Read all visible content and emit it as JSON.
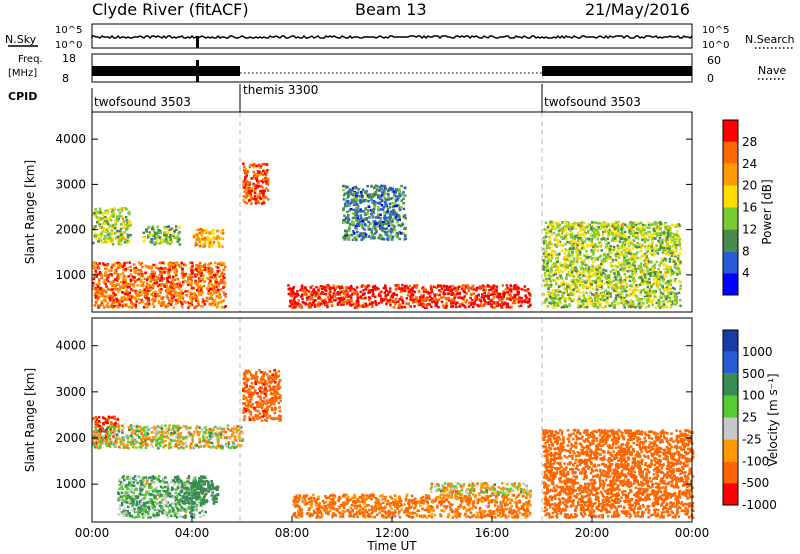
{
  "title": {
    "station": "Clyde River (fitACF)",
    "beam": "Beam 13",
    "date": "21/May/2016"
  },
  "status_panels": {
    "nsky": {
      "left_label": "N.Sky",
      "right_label": "N.Search",
      "left_ticks": [
        "10^5",
        "10^0"
      ],
      "right_ticks": [
        "10^5",
        "10^0"
      ]
    },
    "freq": {
      "left_label_1": "Freq.",
      "left_label_2": "[MHz]",
      "right_label": "Nave",
      "left_ticks": [
        "18",
        "8"
      ],
      "right_ticks": [
        "60",
        "0"
      ]
    },
    "cpid": {
      "label": "CPID",
      "modes": [
        {
          "name": "twofsound 3503",
          "start_hour": 0
        },
        {
          "name": "themis 3300",
          "start_hour": 6
        },
        {
          "name": "twofsound 3503",
          "start_hour": 18
        }
      ]
    }
  },
  "colors": {
    "power": [
      "#0000ff",
      "#2a5bd7",
      "#4a8a4a",
      "#7acc33",
      "#ffdd00",
      "#ff9900",
      "#ff6a00",
      "#ff0000"
    ],
    "velocity": [
      "#ff0000",
      "#ff6600",
      "#ff9900",
      "#c8c8c8",
      "#55cc33",
      "#3a8a55",
      "#2a5bd7",
      "#1a3aa8"
    ]
  },
  "chart_data": [
    {
      "type": "heatmap",
      "name": "power",
      "xlabel": "Time UT",
      "ylabel": "Slant Range [km]",
      "x_ticks": [
        "00:00",
        "04:00",
        "08:00",
        "12:00",
        "16:00",
        "20:00",
        "00:00"
      ],
      "y_ticks": [
        1000,
        2000,
        3000,
        4000
      ],
      "xlim": [
        0,
        24
      ],
      "ylim": [
        180,
        4600
      ],
      "colorbar": {
        "label": "Power [dB]",
        "ticks": [
          "4",
          "8",
          "12",
          "16",
          "20",
          "24",
          "28"
        ],
        "range": [
          0,
          30
        ]
      },
      "features": [
        {
          "t0": 0.0,
          "t1": 5.3,
          "r0": 300,
          "r1": 1300,
          "level": 24
        },
        {
          "t0": 0.0,
          "t1": 1.5,
          "r0": 1700,
          "r1": 2500,
          "level": 14
        },
        {
          "t0": 2.0,
          "t1": 3.5,
          "r0": 1700,
          "r1": 2100,
          "level": 12
        },
        {
          "t0": 4.0,
          "t1": 5.2,
          "r0": 1650,
          "r1": 2050,
          "level": 20
        },
        {
          "t0": 6.0,
          "t1": 7.0,
          "r0": 2600,
          "r1": 3500,
          "level": 26
        },
        {
          "t0": 7.8,
          "t1": 17.5,
          "r0": 300,
          "r1": 800,
          "level": 28
        },
        {
          "t0": 10.0,
          "t1": 12.5,
          "r0": 1800,
          "r1": 3000,
          "level": 8
        },
        {
          "t0": 18.0,
          "t1": 23.5,
          "r0": 300,
          "r1": 2200,
          "level": 14
        }
      ]
    },
    {
      "type": "heatmap",
      "name": "velocity",
      "xlabel": "Time UT",
      "ylabel": "Slant Range [km]",
      "x_ticks": [
        "00:00",
        "04:00",
        "08:00",
        "12:00",
        "16:00",
        "20:00",
        "00:00"
      ],
      "y_ticks": [
        1000,
        2000,
        3000,
        4000
      ],
      "xlim": [
        0,
        24
      ],
      "ylim": [
        180,
        4600
      ],
      "colorbar": {
        "label": "Velocity [m s⁻¹]",
        "ticks": [
          "1000",
          "500",
          "100",
          "25",
          "-25",
          "-100",
          "-500",
          "-1000"
        ],
        "range": [
          -1000,
          1000
        ]
      },
      "features": [
        {
          "t0": 0.0,
          "t1": 1.0,
          "r0": 1900,
          "r1": 2500,
          "level": -500
        },
        {
          "t0": 0.0,
          "t1": 6.0,
          "r0": 1800,
          "r1": 2300,
          "level": 0
        },
        {
          "t0": 1.0,
          "t1": 4.5,
          "r0": 300,
          "r1": 1200,
          "level": 100
        },
        {
          "t0": 3.5,
          "t1": 5.0,
          "r0": 600,
          "r1": 1100,
          "level": 300
        },
        {
          "t0": 6.0,
          "t1": 7.5,
          "r0": 2400,
          "r1": 3500,
          "level": -400
        },
        {
          "t0": 8.0,
          "t1": 17.5,
          "r0": 300,
          "r1": 800,
          "level": -150
        },
        {
          "t0": 13.5,
          "t1": 17.5,
          "r0": 800,
          "r1": 1050,
          "level": 0
        },
        {
          "t0": 18.0,
          "t1": 24.0,
          "r0": 300,
          "r1": 2200,
          "level": -300
        }
      ]
    }
  ]
}
